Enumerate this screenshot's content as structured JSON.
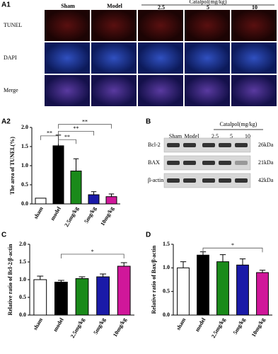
{
  "panels": {
    "a1": "A1",
    "a2": "A2",
    "b": "B",
    "c": "C",
    "d": "D"
  },
  "micrograph": {
    "columns": [
      "Sham",
      "Model",
      "2.5",
      "5",
      "10"
    ],
    "group": "Catalpol(mg/kg)",
    "rows": [
      "TUNEL",
      "DAPI",
      "Merge"
    ]
  },
  "blot": {
    "lanes": [
      "Sham",
      "Model",
      "2.5",
      "5",
      "10"
    ],
    "group": "Catalpol(mg/kg)",
    "rows": [
      "Bcl-2",
      "BAX",
      "β-actin"
    ],
    "sizes": [
      "26kDa",
      "21kDa",
      "42kDa"
    ]
  },
  "chart_data": [
    {
      "type": "bar",
      "y_label": "The area of TUNEL(%)",
      "categories": [
        "sham",
        "model",
        "2.5mg/kg",
        "5mg/kg",
        "10mg/kg"
      ],
      "values": [
        0.15,
        1.52,
        0.86,
        0.24,
        0.19
      ],
      "errors": [
        0,
        0.28,
        0.32,
        0.08,
        0.07
      ],
      "colors": [
        "#ffffff",
        "#000000",
        "#1a8a1a",
        "#1a1aa8",
        "#d0179a"
      ],
      "ylim": [
        0,
        2
      ],
      "yticks": [
        {
          "value": 0,
          "label": "0.0"
        },
        {
          "value": 0.5,
          "label": "0.5"
        },
        {
          "value": 1,
          "label": "1.0"
        },
        {
          "value": 1.5,
          "label": "1.5"
        },
        {
          "value": 2,
          "label": "2.0"
        }
      ],
      "annotations": [
        "**",
        "**",
        "**",
        "**"
      ]
    },
    {
      "type": "bar",
      "y_label": "Relative ratio of Bcl-2/β-actin",
      "categories": [
        "sham",
        "model",
        "2.5mg/kg",
        "5mg/kg",
        "10mg/kg"
      ],
      "values": [
        1.0,
        0.93,
        1.03,
        1.08,
        1.38
      ],
      "errors": [
        0.1,
        0.05,
        0.05,
        0.08,
        0.1
      ],
      "colors": [
        "#ffffff",
        "#000000",
        "#1a8a1a",
        "#1a1aa8",
        "#d0179a"
      ],
      "ylim": [
        0,
        2
      ],
      "yticks": [
        {
          "value": 0,
          "label": "0.0"
        },
        {
          "value": 0.5,
          "label": "0.5"
        },
        {
          "value": 1,
          "label": "1.0"
        },
        {
          "value": 1.5,
          "label": "1.5"
        },
        {
          "value": 2,
          "label": "2.0"
        }
      ],
      "annotations": [
        "*"
      ]
    },
    {
      "type": "bar",
      "y_label": "Relative ratio of Bax/β-actin",
      "categories": [
        "sham",
        "model",
        "2.5mg/kg",
        "5mg/kg",
        "10mg/kg"
      ],
      "values": [
        1.0,
        1.27,
        1.13,
        1.06,
        0.9
      ],
      "errors": [
        0.13,
        0.07,
        0.15,
        0.13,
        0.05
      ],
      "colors": [
        "#ffffff",
        "#000000",
        "#1a8a1a",
        "#1a1aa8",
        "#d0179a"
      ],
      "ylim": [
        0,
        1.5
      ],
      "yticks": [
        {
          "value": 0,
          "label": "0.0"
        },
        {
          "value": 0.5,
          "label": "0.5"
        },
        {
          "value": 1,
          "label": "1.0"
        },
        {
          "value": 1.5,
          "label": "1.5"
        }
      ],
      "annotations": [
        "*"
      ]
    }
  ]
}
